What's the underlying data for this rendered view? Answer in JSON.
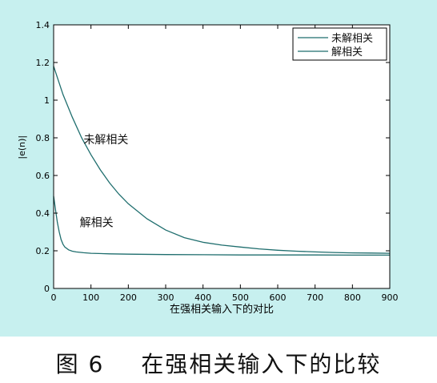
{
  "caption": {
    "figure_number": "图 6",
    "text": "在强相关输入下的比较"
  },
  "colors": {
    "panel_background": "#c7f0ef",
    "axes_background": "#ffffff",
    "curve": "#1f6e6e",
    "axis": "#000000"
  },
  "chart_data": {
    "type": "line",
    "title": "",
    "xlabel": "在强相关输入下的对比",
    "ylabel": "|e(n)|",
    "xlim": [
      0,
      900
    ],
    "ylim": [
      0,
      1.4
    ],
    "xticks": [
      0,
      100,
      200,
      300,
      400,
      500,
      600,
      700,
      800,
      900
    ],
    "yticks": [
      0,
      0.2,
      0.4,
      0.6,
      0.8,
      1,
      1.2,
      1.4
    ],
    "grid": false,
    "legend_position": "top-right",
    "series": [
      {
        "name": "未解相关",
        "annotation": "未解相关",
        "x": [
          0,
          25,
          50,
          75,
          100,
          125,
          150,
          175,
          200,
          250,
          300,
          350,
          400,
          450,
          500,
          550,
          600,
          650,
          700,
          750,
          800,
          850,
          900
        ],
        "y": [
          1.18,
          1.03,
          0.91,
          0.8,
          0.71,
          0.63,
          0.56,
          0.5,
          0.45,
          0.37,
          0.31,
          0.27,
          0.245,
          0.23,
          0.22,
          0.21,
          0.203,
          0.198,
          0.194,
          0.191,
          0.189,
          0.188,
          0.187
        ]
      },
      {
        "name": "解相关",
        "annotation": "解相关",
        "x": [
          0,
          5,
          10,
          15,
          20,
          25,
          30,
          40,
          50,
          60,
          80,
          100,
          150,
          200,
          300,
          400,
          500,
          600,
          700,
          800,
          900
        ],
        "y": [
          0.49,
          0.42,
          0.35,
          0.3,
          0.26,
          0.235,
          0.22,
          0.205,
          0.198,
          0.194,
          0.19,
          0.187,
          0.184,
          0.182,
          0.18,
          0.179,
          0.178,
          0.178,
          0.178,
          0.177,
          0.177
        ]
      }
    ]
  }
}
